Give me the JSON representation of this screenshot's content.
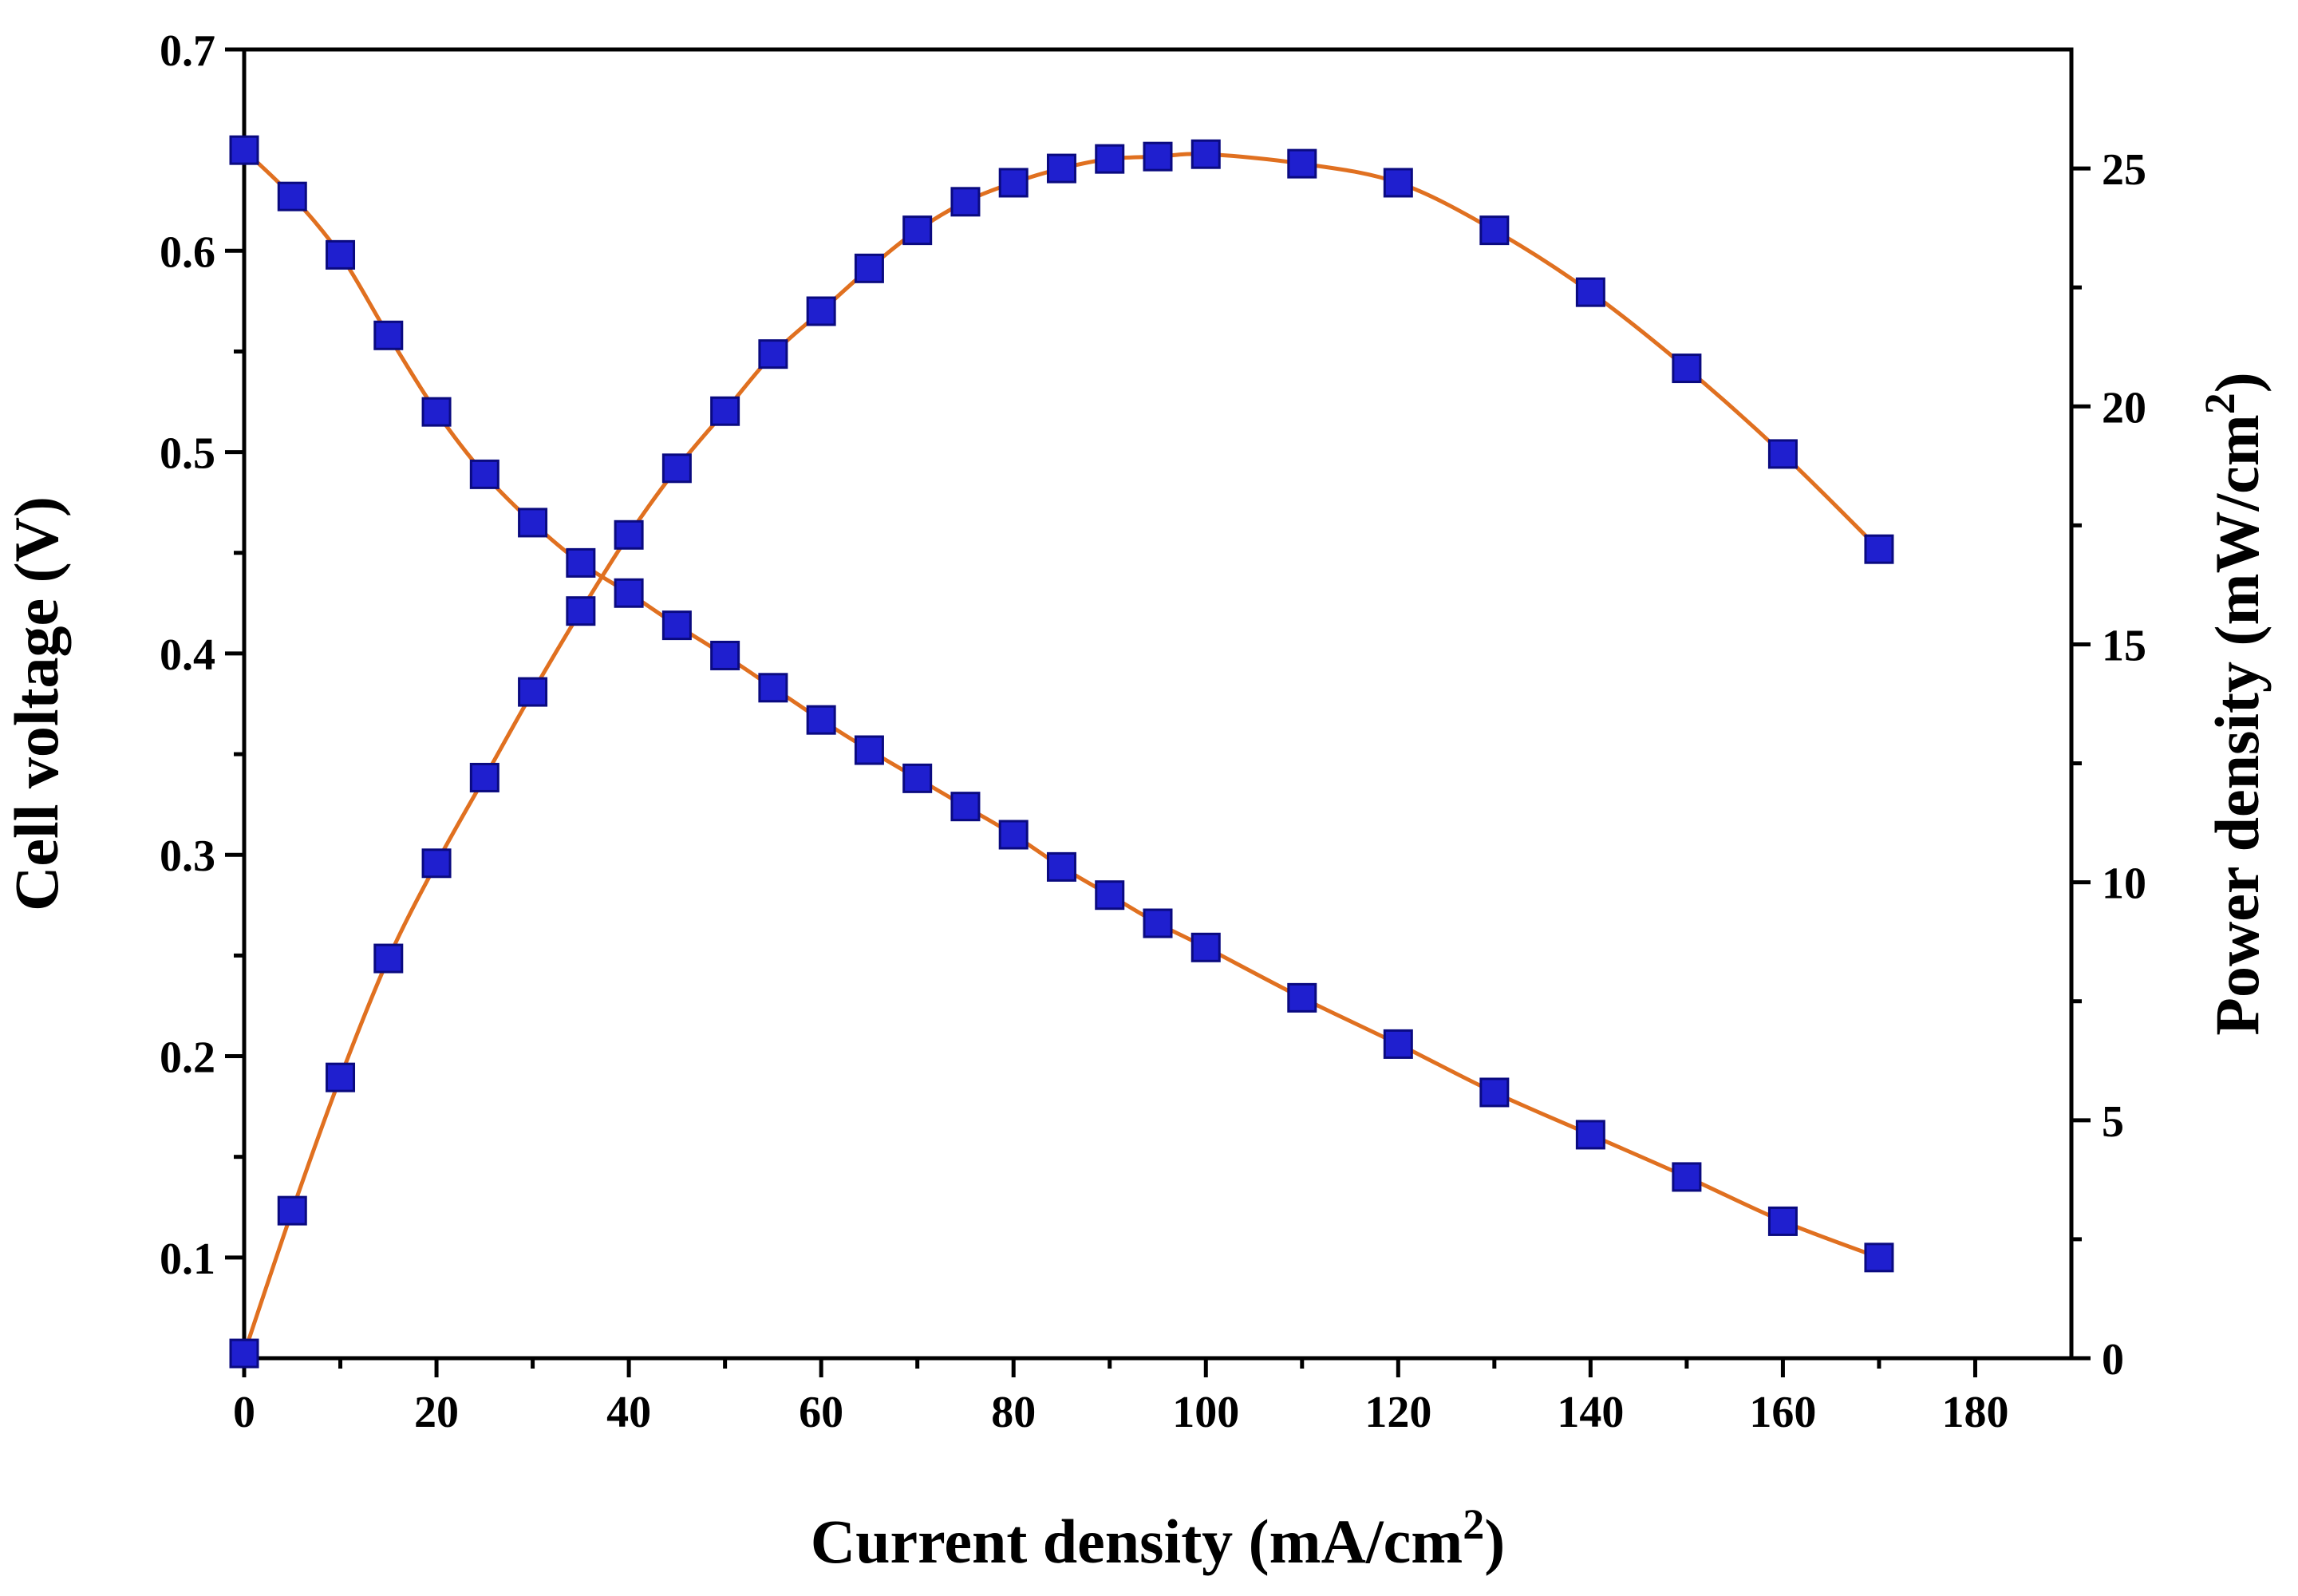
{
  "chart_data": {
    "type": "line",
    "title": "",
    "xlabel": "Current density (mA/cm",
    "xlabel_sup": "2",
    "xlabel_end": ")",
    "ylabel": "Cell voltage (V)",
    "y2label": "Power density (mW/cm",
    "y2label_sup": "2",
    "y2label_end": ")",
    "xlim": [
      0,
      190
    ],
    "ylim": [
      0.05,
      0.7
    ],
    "y2lim": [
      0,
      27.5
    ],
    "xticks": [
      0,
      20,
      40,
      60,
      80,
      100,
      120,
      140,
      160,
      180
    ],
    "yticks": [
      0.1,
      0.2,
      0.3,
      0.4,
      0.5,
      0.6,
      0.7
    ],
    "y2ticks": [
      0,
      5,
      10,
      15,
      20,
      25
    ],
    "grid": false,
    "line_color": "#e07020",
    "marker_color": "#1f1fcf",
    "series": [
      {
        "name": "Cell voltage",
        "axis": "left",
        "x": [
          0,
          5,
          10,
          15,
          20,
          25,
          30,
          35,
          40,
          45,
          50,
          55,
          60,
          65,
          70,
          75,
          80,
          85,
          90,
          95,
          100,
          110,
          120,
          130,
          140,
          150,
          160,
          170
        ],
        "values": [
          0.65,
          0.627,
          0.598,
          0.558,
          0.52,
          0.489,
          0.465,
          0.445,
          0.43,
          0.414,
          0.399,
          0.383,
          0.367,
          0.352,
          0.338,
          0.324,
          0.31,
          0.294,
          0.28,
          0.266,
          0.254,
          0.229,
          0.206,
          0.182,
          0.161,
          0.14,
          0.118,
          0.1
        ]
      },
      {
        "name": "Power density",
        "axis": "right",
        "x": [
          0,
          5,
          10,
          15,
          20,
          25,
          30,
          35,
          40,
          45,
          50,
          55,
          60,
          65,
          70,
          75,
          80,
          85,
          90,
          95,
          100,
          110,
          120,
          130,
          140,
          150,
          160,
          170
        ],
        "values": [
          0.1,
          3.1,
          5.9,
          8.4,
          10.4,
          12.2,
          14.0,
          15.7,
          17.3,
          18.7,
          19.9,
          21.1,
          22.0,
          22.9,
          23.7,
          24.3,
          24.7,
          25.0,
          25.2,
          25.25,
          25.3,
          25.1,
          24.7,
          23.7,
          22.4,
          20.8,
          19.0,
          17.0
        ]
      }
    ]
  }
}
